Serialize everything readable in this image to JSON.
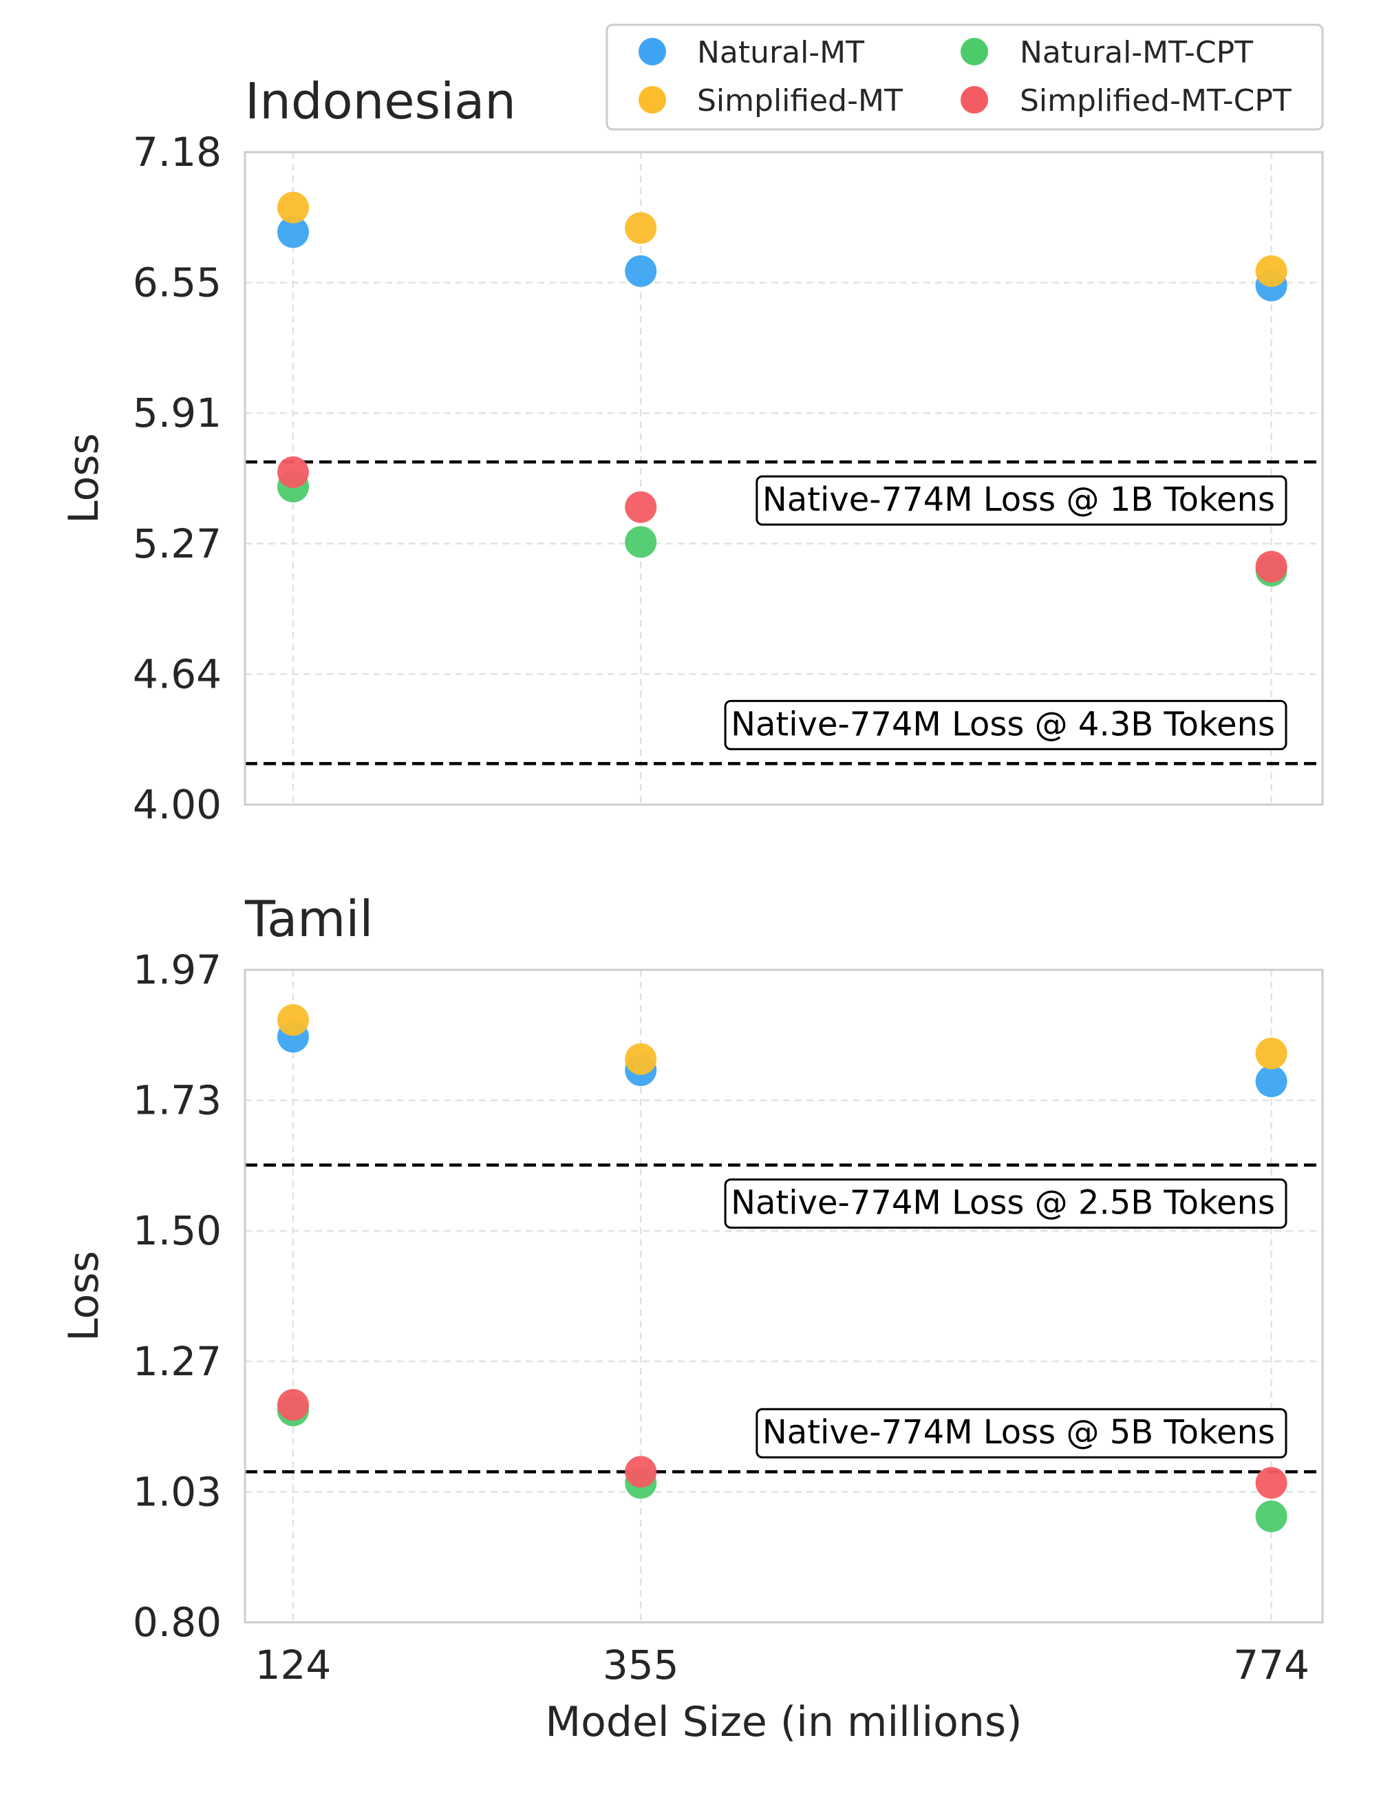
{
  "figure": {
    "xlabel": "Model Size (in millions)"
  },
  "legend": {
    "location": "top-right",
    "entries": [
      {
        "name": "Natural-MT",
        "color": "#3ca4f3"
      },
      {
        "name": "Natural-MT-CPT",
        "color": "#4dcb6b"
      },
      {
        "name": "Simplified-MT",
        "color": "#fbbd2b"
      },
      {
        "name": "Simplified-MT-CPT",
        "color": "#f45c63"
      }
    ]
  },
  "chart_data": [
    {
      "type": "scatter",
      "title": "Indonesian",
      "xlabel": "Model Size (in millions)",
      "ylabel": "Loss",
      "x_categories": [
        "124",
        "355",
        "774"
      ],
      "x": [
        124,
        355,
        774
      ],
      "xlim": [
        92,
        808
      ],
      "ylim": [
        4.0,
        7.18
      ],
      "yticks": [
        "4.00",
        "4.64",
        "5.27",
        "5.91",
        "6.55",
        "7.18"
      ],
      "grid": true,
      "series": [
        {
          "name": "Natural-MT",
          "color": "#3ca4f3",
          "values": [
            6.79,
            6.6,
            6.53
          ]
        },
        {
          "name": "Simplified-MT",
          "color": "#fbbd2b",
          "values": [
            6.91,
            6.81,
            6.6
          ]
        },
        {
          "name": "Natural-MT-CPT",
          "color": "#4dcb6b",
          "values": [
            5.55,
            5.28,
            5.14
          ]
        },
        {
          "name": "Simplified-MT-CPT",
          "color": "#f45c63",
          "values": [
            5.62,
            5.45,
            5.16
          ]
        }
      ],
      "reference_lines": [
        {
          "y": 5.67,
          "label": "Native-774M Loss @ 1B Tokens",
          "label_position": "below-right"
        },
        {
          "y": 4.2,
          "label": "Native-774M Loss @ 4.3B Tokens",
          "label_position": "above-right"
        }
      ]
    },
    {
      "type": "scatter",
      "title": "Tamil",
      "xlabel": "Model Size (in millions)",
      "ylabel": "Loss",
      "x_categories": [
        "124",
        "355",
        "774"
      ],
      "x": [
        124,
        355,
        774
      ],
      "xlim": [
        92,
        808
      ],
      "ylim": [
        0.8,
        1.97
      ],
      "yticks": [
        "0.80",
        "1.03",
        "1.27",
        "1.50",
        "1.73",
        "1.97"
      ],
      "grid": true,
      "series": [
        {
          "name": "Natural-MT",
          "color": "#3ca4f3",
          "values": [
            1.85,
            1.79,
            1.77
          ]
        },
        {
          "name": "Simplified-MT",
          "color": "#fbbd2b",
          "values": [
            1.88,
            1.81,
            1.82
          ]
        },
        {
          "name": "Natural-MT-CPT",
          "color": "#4dcb6b",
          "values": [
            1.18,
            1.05,
            0.99
          ]
        },
        {
          "name": "Simplified-MT-CPT",
          "color": "#f45c63",
          "values": [
            1.19,
            1.07,
            1.05
          ]
        }
      ],
      "reference_lines": [
        {
          "y": 1.62,
          "label": "Native-774M Loss @ 2.5B Tokens",
          "label_position": "below-right"
        },
        {
          "y": 1.07,
          "label": "Native-774M Loss @ 5B Tokens",
          "label_position": "above-right"
        }
      ]
    }
  ]
}
